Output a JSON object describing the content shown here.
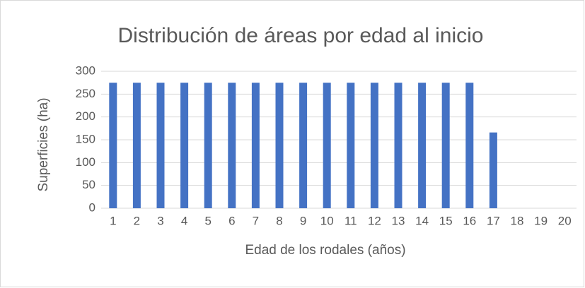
{
  "chart_data": {
    "type": "bar",
    "title": "Distribución de áreas por edad al inicio",
    "x_label": "Edad de los rodales (años)",
    "y_label": "Superficies (ha)",
    "categories": [
      "1",
      "2",
      "3",
      "4",
      "5",
      "6",
      "7",
      "8",
      "9",
      "10",
      "11",
      "12",
      "13",
      "14",
      "15",
      "16",
      "17",
      "18",
      "19",
      "20"
    ],
    "values": [
      275,
      275,
      275,
      275,
      275,
      275,
      275,
      275,
      275,
      275,
      275,
      275,
      275,
      275,
      275,
      275,
      166,
      0,
      0,
      0
    ],
    "color": "#4472c4",
    "ylim": [
      0,
      300
    ],
    "yticks": [
      0,
      50,
      100,
      150,
      200,
      250,
      300
    ],
    "grid": true
  }
}
